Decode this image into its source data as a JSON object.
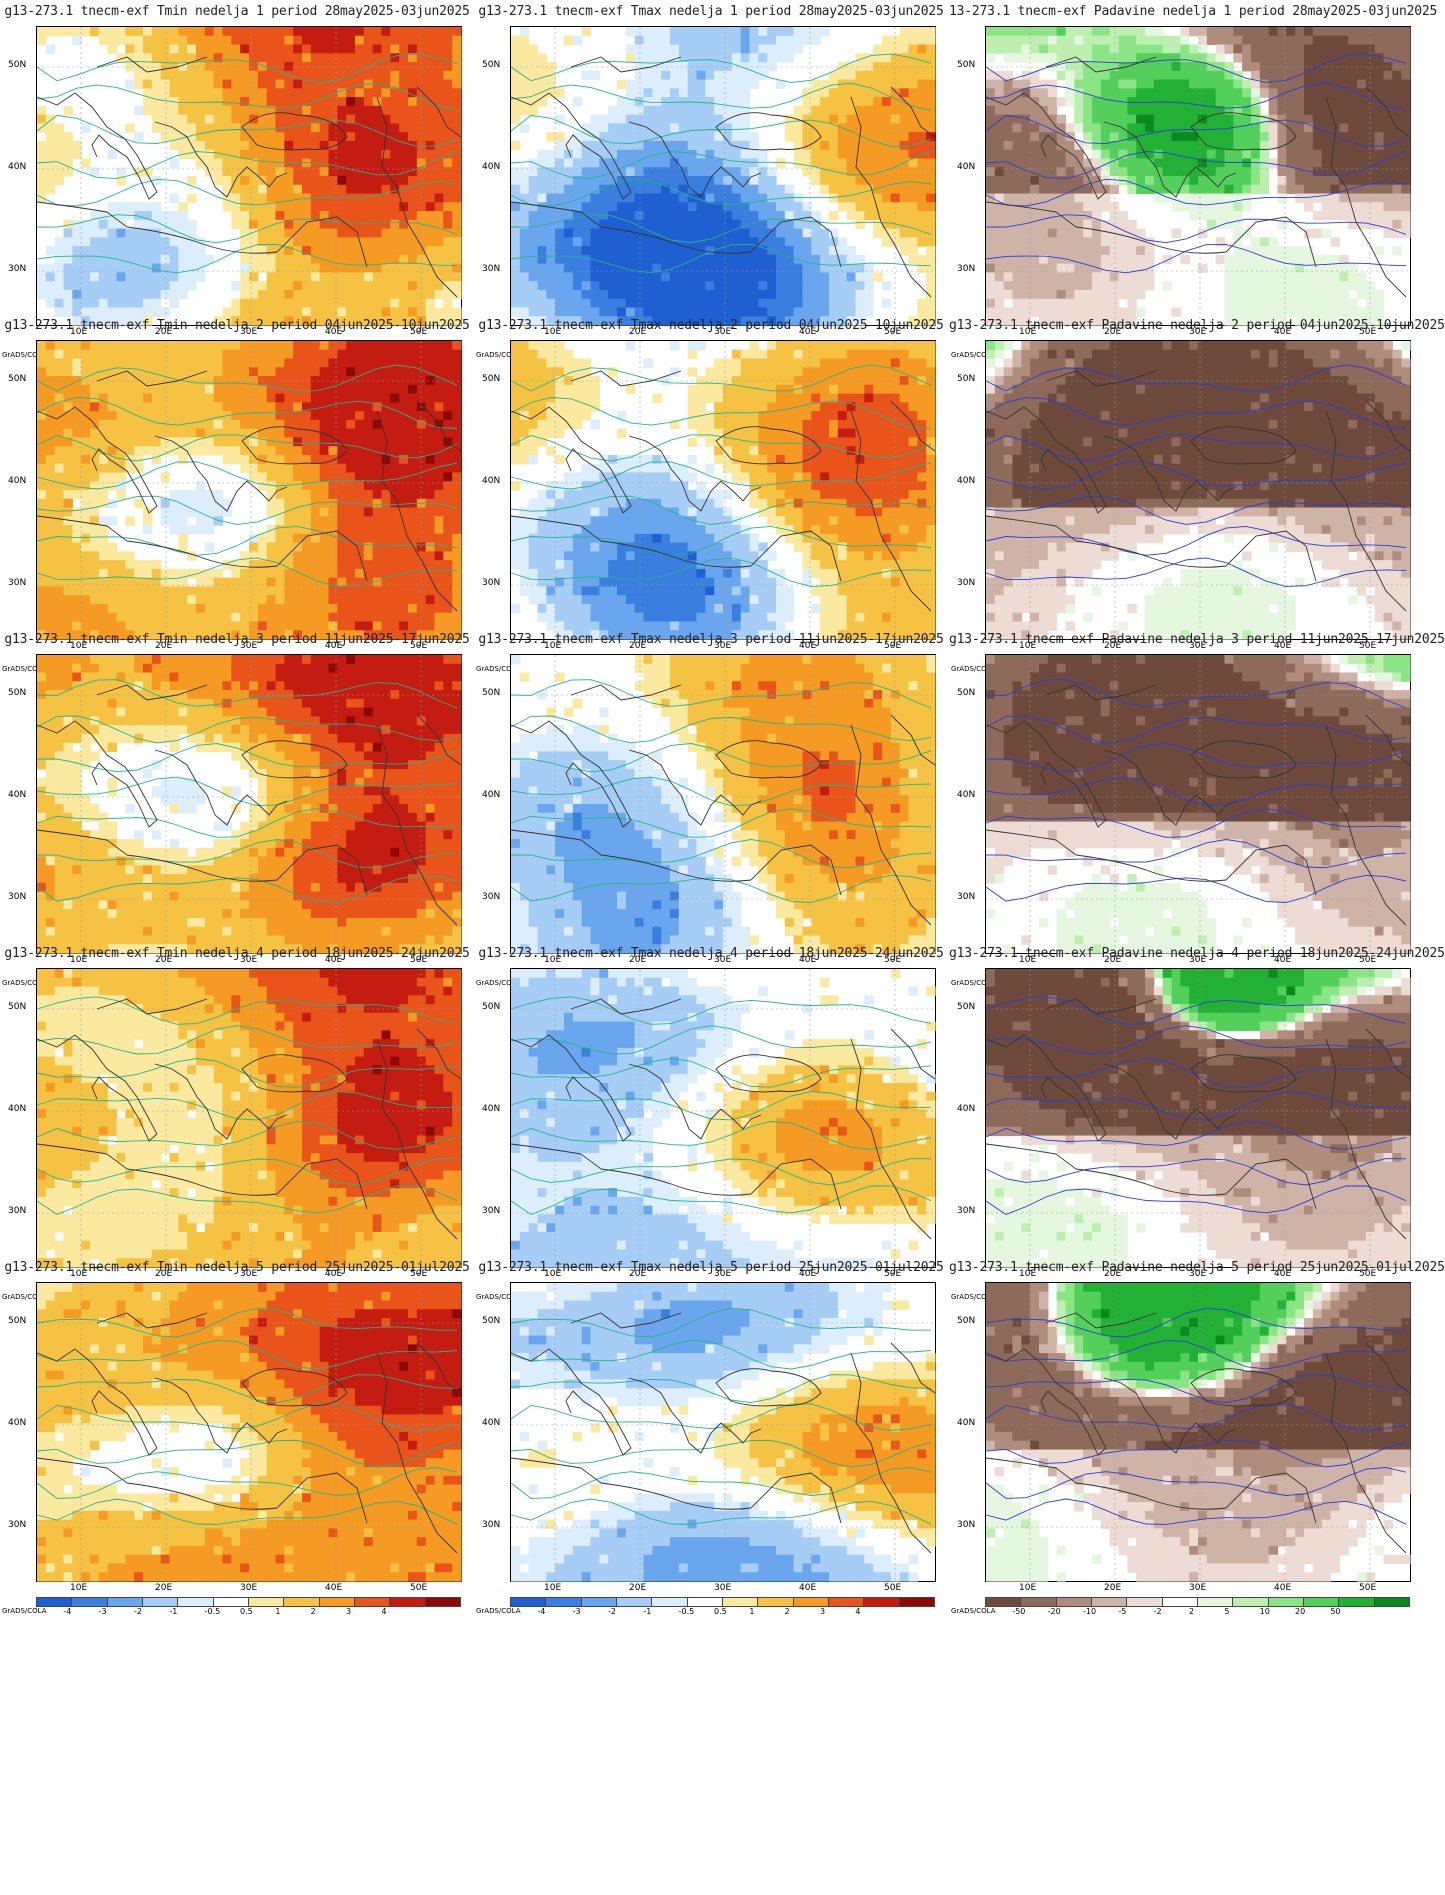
{
  "panels": [
    {
      "title": "g13-273.1 tnecm-exf Tmin nedelja 1 period 28may2025-03jun2025",
      "var": "Tmin",
      "week": 1
    },
    {
      "title": "g13-273.1 tnecm-exf Tmax nedelja 1 period 28may2025-03jun2025",
      "var": "Tmax",
      "week": 1
    },
    {
      "title": "13-273.1 tnecm-exf Padavine nedelja 1 period 28may2025-03jun2025",
      "var": "Padavine",
      "week": 1
    },
    {
      "title": "g13-273.1 tnecm-exf Tmin nedelja 2 period 04jun2025-10jun2025",
      "var": "Tmin",
      "week": 2
    },
    {
      "title": "g13-273.1 tnecm-exf Tmax nedelja 2 period 04jun2025-10jun2025",
      "var": "Tmax",
      "week": 2
    },
    {
      "title": "g13-273.1 tnecm-exf Padavine nedelja 2 period 04jun2025-10jun2025",
      "var": "Padavine",
      "week": 2
    },
    {
      "title": "g13-273.1 tnecm-exf Tmin nedelja 3 period 11jun2025-17jun2025",
      "var": "Tmin",
      "week": 3
    },
    {
      "title": "g13-273.1 tnecm-exf Tmax nedelja 3 period 11jun2025-17jun2025",
      "var": "Tmax",
      "week": 3
    },
    {
      "title": "g13-273.1 tnecm-exf Padavine nedelja 3 period 11jun2025-17jun2025",
      "var": "Padavine",
      "week": 3
    },
    {
      "title": "g13-273.1 tnecm-exf Tmin nedelja 4 period 18jun2025-24jun2025",
      "var": "Tmin",
      "week": 4
    },
    {
      "title": "g13-273.1 tnecm-exf Tmax nedelja 4 period 18jun2025-24jun2025",
      "var": "Tmax",
      "week": 4
    },
    {
      "title": "g13-273.1 tnecm-exf Padavine nedelja 4 period 18jun2025-24jun2025",
      "var": "Padavine",
      "week": 4
    },
    {
      "title": "g13-273.1 tnecm-exf Tmin nedelja 5 period 25jun2025-01jul2025",
      "var": "Tmin",
      "week": 5
    },
    {
      "title": "g13-273.1 tnecm-exf Tmax nedelja 5 period 25jun2025-01jul2025",
      "var": "Tmax",
      "week": 5
    },
    {
      "title": "g13-273.1 tnecm-exf Padavine nedelja 5 period 25jun2025-01jul2025",
      "var": "Padavine",
      "week": 5
    }
  ],
  "lat_labels": [
    "50N",
    "40N",
    "30N"
  ],
  "lon_labels": [
    "10E",
    "20E",
    "30E",
    "40E",
    "50E"
  ],
  "credit": "GrADS/COLA",
  "temp_scale": {
    "labels": [
      "-4",
      "-3",
      "-2",
      "-1",
      "-0.5",
      "0.5",
      "1",
      "2",
      "3",
      "4"
    ],
    "colors": [
      "#1f5fcf",
      "#3a7ee0",
      "#6aa6ee",
      "#a6cdf6",
      "#dcedfb",
      "#ffffff",
      "#fbe9a0",
      "#f6c244",
      "#f59a22",
      "#e9541a",
      "#c41c10",
      "#8c0a06"
    ]
  },
  "precip_scale": {
    "labels": [
      "-50",
      "-20",
      "-10",
      "-5",
      "-2",
      "2",
      "5",
      "10",
      "20",
      "50"
    ],
    "colors": [
      "#6e4a3c",
      "#8e6a5a",
      "#b08c7c",
      "#cfb3a6",
      "#ecdcd3",
      "#ffffff",
      "#e6f7e0",
      "#bdf0b0",
      "#8be486",
      "#53d05a",
      "#22b035",
      "#0a8a1e"
    ]
  }
}
